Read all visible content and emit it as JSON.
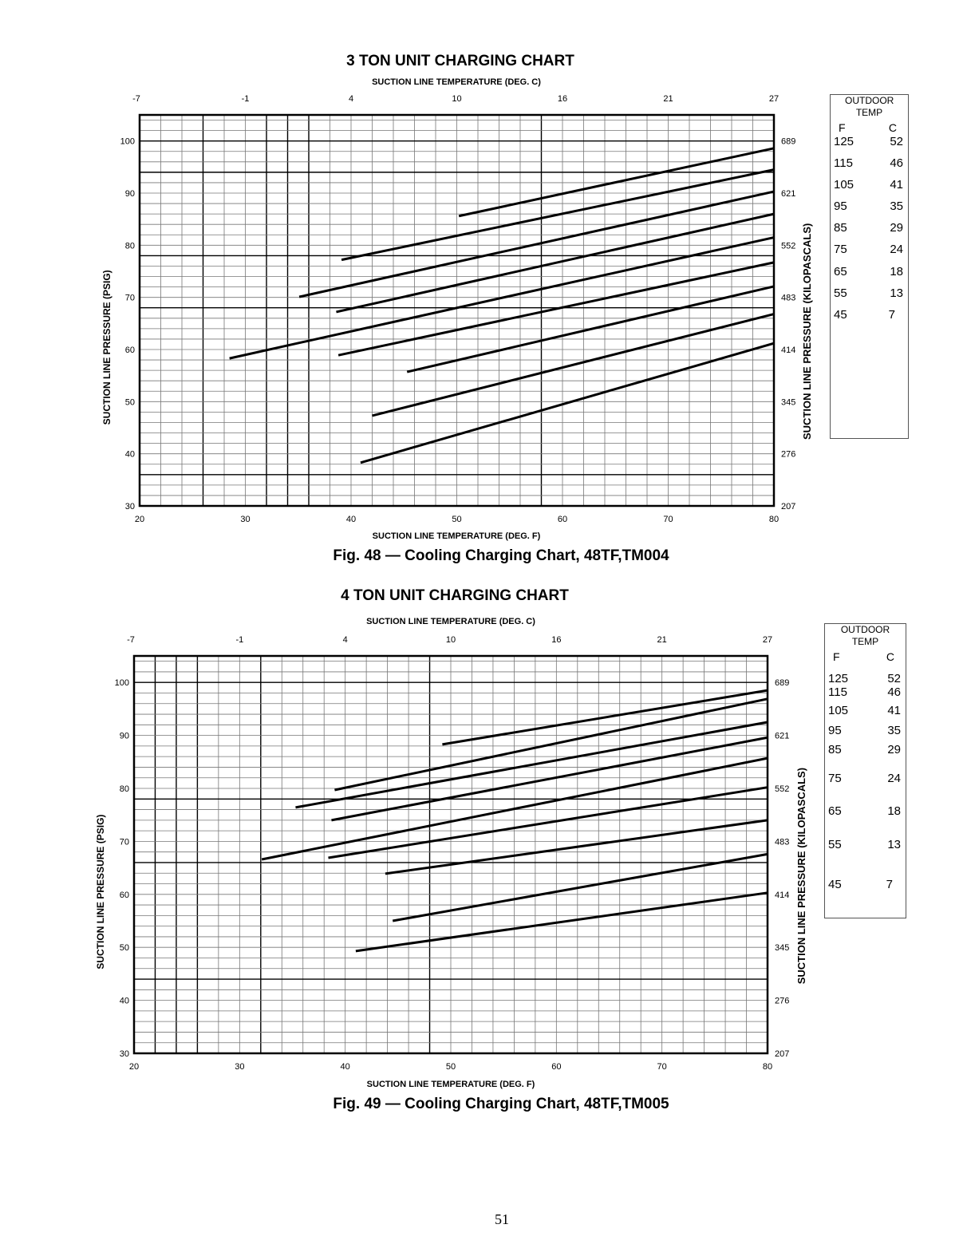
{
  "page_number": "51",
  "chart_data": [
    {
      "type": "line",
      "title": "3 TON UNIT CHARGING CHART",
      "caption": "Fig. 48 — Cooling Charging Chart, 48TF,TM004",
      "xlabel": "SUCTION LINE TEMPERATURE (DEG. F)",
      "x2label": "SUCTION LINE TEMPERATURE (DEG. C)",
      "ylabel": "SUCTION LINE PRESSURE (PSIG)",
      "y2label": "SUCTION LINE PRESSURE (KILOPASCALS)",
      "xlim": [
        20,
        80
      ],
      "ylim": [
        30,
        105
      ],
      "grid": true,
      "xticks": [
        "20",
        "30",
        "40",
        "50",
        "60",
        "70",
        "80"
      ],
      "x2ticks": [
        "-7",
        "-1",
        "4",
        "10",
        "16",
        "21",
        "27"
      ],
      "yticks": [
        "30",
        "40",
        "50",
        "60",
        "70",
        "80",
        "90",
        "100"
      ],
      "y2ticks": [
        "207",
        "276",
        "345",
        "414",
        "483",
        "552",
        "621",
        "689"
      ],
      "legend": {
        "title": "OUTDOOR TEMP",
        "col_f": "F",
        "col_c": "C",
        "placement": "right",
        "rows": [
          [
            "125",
            "52"
          ],
          [
            "115",
            "46"
          ],
          [
            "105",
            "41"
          ],
          [
            "95",
            "35"
          ],
          [
            "85",
            "29"
          ],
          [
            "75",
            "24"
          ],
          [
            "65",
            "18"
          ],
          [
            "55",
            "13"
          ],
          [
            "45",
            "7"
          ]
        ]
      },
      "series": [
        {
          "name": "125F",
          "x": [
            50.2,
            80
          ],
          "y": [
            85.6,
            98.6
          ]
        },
        {
          "name": "115F",
          "x": [
            39.1,
            80
          ],
          "y": [
            77.2,
            94.5
          ]
        },
        {
          "name": "105F",
          "x": [
            35.1,
            80
          ],
          "y": [
            70.1,
            90.3
          ]
        },
        {
          "name": "95F",
          "x": [
            38.6,
            80
          ],
          "y": [
            67.2,
            86.0
          ]
        },
        {
          "name": "85F",
          "x": [
            28.5,
            80
          ],
          "y": [
            58.3,
            81.5
          ]
        },
        {
          "name": "75F",
          "x": [
            38.8,
            80
          ],
          "y": [
            58.9,
            76.7
          ]
        },
        {
          "name": "65F",
          "x": [
            45.3,
            80
          ],
          "y": [
            55.7,
            72.1
          ]
        },
        {
          "name": "55F",
          "x": [
            42.0,
            80
          ],
          "y": [
            47.3,
            66.8
          ]
        },
        {
          "name": "45F",
          "x": [
            40.9,
            80
          ],
          "y": [
            38.3,
            61.2
          ]
        }
      ]
    },
    {
      "type": "line",
      "title": "4 TON UNIT CHARGING CHART",
      "caption": "Fig. 49 — Cooling Charging Chart, 48TF,TM005",
      "xlabel": "SUCTION LINE TEMPERATURE (DEG. F)",
      "x2label": "SUCTION LINE TEMPERATURE (DEG. C)",
      "ylabel": "SUCTION LINE PRESSURE (PSIG)",
      "y2label": "SUCTION LINE PRESSURE (KILOPASCALS)",
      "xlim": [
        20,
        80
      ],
      "ylim": [
        30,
        105
      ],
      "grid": true,
      "xticks": [
        "20",
        "30",
        "40",
        "50",
        "60",
        "70",
        "80"
      ],
      "x2ticks": [
        "-7",
        "-1",
        "4",
        "10",
        "16",
        "21",
        "27"
      ],
      "yticks": [
        "30",
        "40",
        "50",
        "60",
        "70",
        "80",
        "90",
        "100"
      ],
      "y2ticks": [
        "207",
        "276",
        "345",
        "414",
        "483",
        "552",
        "621",
        "689"
      ],
      "legend": {
        "title": "OUTDOOR TEMP",
        "col_f": "F",
        "col_c": "C",
        "placement": "right",
        "rows": [
          [
            "125",
            "52"
          ],
          [
            "115",
            "46"
          ],
          [
            "105",
            "41"
          ],
          [
            "95",
            "35"
          ],
          [
            "85",
            "29"
          ],
          [
            "75",
            "24"
          ],
          [
            "65",
            "18"
          ],
          [
            "55",
            "13"
          ],
          [
            "45",
            "7"
          ]
        ]
      },
      "series": [
        {
          "name": "125F",
          "x": [
            49.2,
            80
          ],
          "y": [
            88.3,
            98.5
          ]
        },
        {
          "name": "115F",
          "x": [
            39.0,
            80
          ],
          "y": [
            79.7,
            96.9
          ]
        },
        {
          "name": "105F",
          "x": [
            35.3,
            80
          ],
          "y": [
            76.4,
            92.5
          ]
        },
        {
          "name": "95F",
          "x": [
            38.7,
            80
          ],
          "y": [
            74.0,
            89.6
          ]
        },
        {
          "name": "85F",
          "x": [
            32.1,
            80
          ],
          "y": [
            66.6,
            85.7
          ]
        },
        {
          "name": "75F",
          "x": [
            38.4,
            80
          ],
          "y": [
            66.9,
            80.2
          ]
        },
        {
          "name": "65F",
          "x": [
            43.8,
            80
          ],
          "y": [
            63.9,
            74.0
          ]
        },
        {
          "name": "55F",
          "x": [
            44.5,
            80
          ],
          "y": [
            55.0,
            67.6
          ]
        },
        {
          "name": "45F",
          "x": [
            41.0,
            80
          ],
          "y": [
            49.3,
            60.3
          ]
        }
      ]
    }
  ]
}
